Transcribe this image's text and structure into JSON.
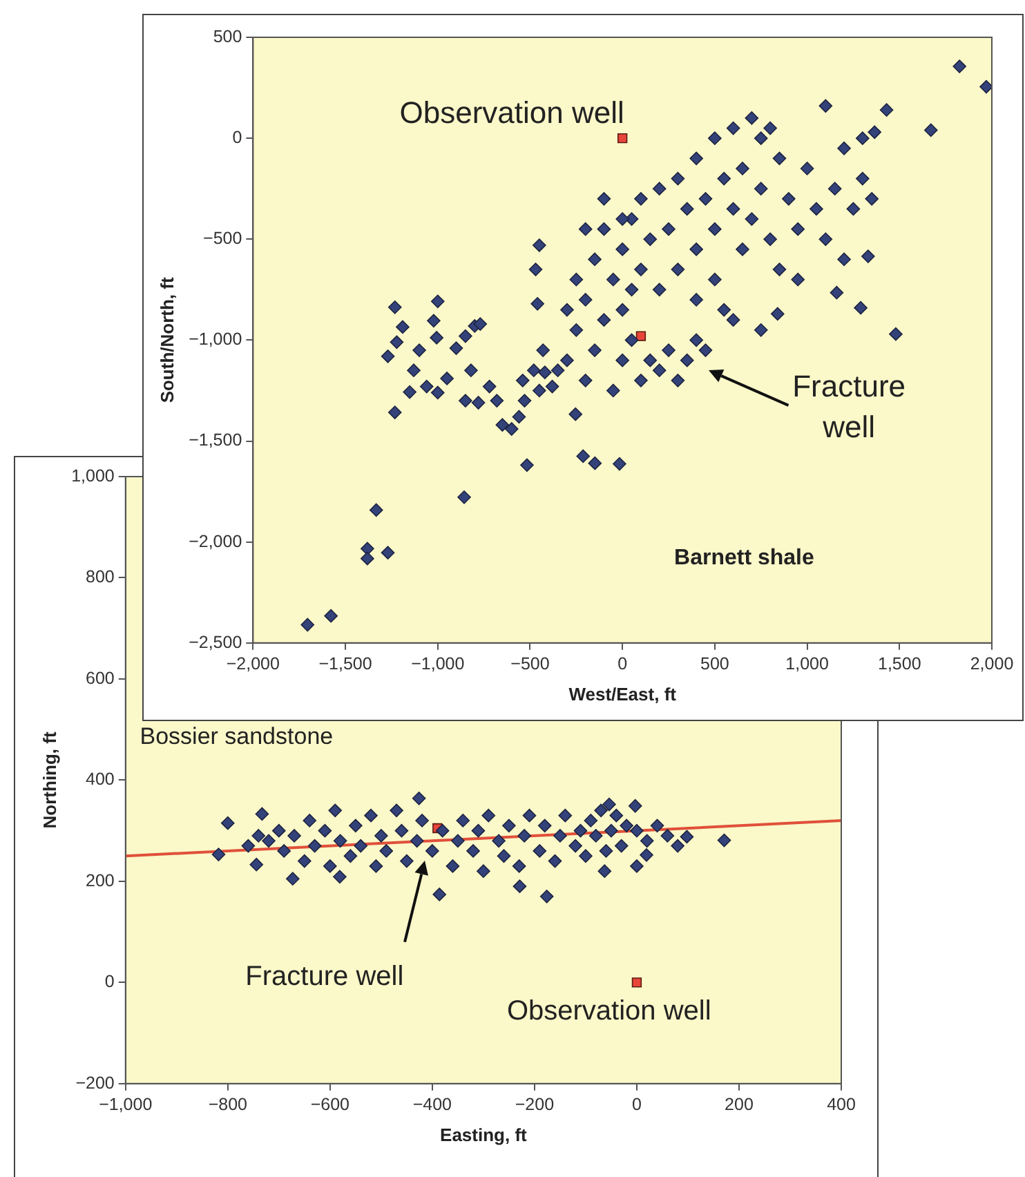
{
  "chart_data": [
    {
      "type": "scatter",
      "xlabel": "West/East, ft",
      "ylabel": "South/North, ft",
      "xlim": [
        -2000,
        2000
      ],
      "ylim": [
        -2500,
        500
      ],
      "xticks": [
        {
          "value": -2000,
          "label": "−2,000"
        },
        {
          "value": -1500,
          "label": "−1,500"
        },
        {
          "value": -1000,
          "label": "−1,000"
        },
        {
          "value": -500,
          "label": "−500"
        },
        0,
        500,
        {
          "value": 1000,
          "label": "1,000"
        },
        {
          "value": 1500,
          "label": "1,500"
        },
        {
          "value": 2000,
          "label": "2,000"
        }
      ],
      "yticks": [
        {
          "value": -2500,
          "label": "−2,500"
        },
        {
          "value": -2000,
          "label": "−2,000"
        },
        {
          "value": -1500,
          "label": "−1,500"
        },
        {
          "value": -1000,
          "label": "−1,000"
        },
        {
          "value": -500,
          "label": "−500"
        },
        0,
        500
      ],
      "grid": false,
      "legend": false,
      "series": [
        {
          "type": "scatter",
          "marker": "diamond",
          "color": "#34427a",
          "x": [
            1825,
            1970,
            1100,
            1670,
            1430,
            1365,
            1480,
            1290,
            1160,
            1330,
            840,
            750,
            -1232,
            -1190,
            -1270,
            -1232,
            -1152,
            -1222,
            -1000,
            -1022,
            -1006,
            -1100,
            -1130,
            -1060,
            -1000,
            -950,
            -900,
            -850,
            -800,
            -770,
            -820,
            -850,
            -780,
            -720,
            -680,
            -650,
            -600,
            -560,
            -540,
            -530,
            -480,
            -450,
            -430,
            -420,
            -380,
            -450,
            -470,
            -460,
            -517,
            -213,
            -149,
            -16,
            -857,
            -1333,
            -1381,
            -1381,
            -1270,
            -1705,
            -1578,
            -254,
            -300,
            -250,
            -200,
            -150,
            -100,
            -50,
            0,
            50,
            100,
            150,
            200,
            250,
            300,
            350,
            400,
            450,
            -250,
            -200,
            -150,
            -100,
            -50,
            0,
            0,
            50,
            100,
            100,
            150,
            200,
            200,
            250,
            300,
            300,
            350,
            400,
            400,
            450,
            500,
            500,
            550,
            600,
            600,
            650,
            700,
            700,
            750,
            750,
            800,
            800,
            850,
            850,
            900,
            950,
            950,
            1000,
            1050,
            1100,
            1150,
            1200,
            1200,
            1250,
            1300,
            1300,
            1350,
            -200,
            -100,
            0,
            50,
            -300,
            -350,
            500,
            600,
            650,
            400,
            550
          ],
          "values": [
            356,
            255,
            160,
            40,
            140,
            30,
            -970,
            -840,
            -765,
            -585,
            -870,
            -950,
            -837,
            -935,
            -1080,
            -1358,
            -1257,
            -1010,
            -808,
            -904,
            -988,
            -1050,
            -1150,
            -1230,
            -1260,
            -1190,
            -1040,
            -980,
            -930,
            -920,
            -1150,
            -1300,
            -1310,
            -1230,
            -1300,
            -1420,
            -1440,
            -1380,
            -1200,
            -1300,
            -1150,
            -1250,
            -1050,
            -1160,
            -1230,
            -530,
            -650,
            -820,
            -1619,
            -1575,
            -1610,
            -1613,
            -1778,
            -1842,
            -2033,
            -2082,
            -2053,
            -2410,
            -2366,
            -1367,
            -1100,
            -950,
            -1200,
            -1050,
            -900,
            -1250,
            -1100,
            -1000,
            -1200,
            -1100,
            -1150,
            -1050,
            -1200,
            -1100,
            -1000,
            -1050,
            -700,
            -800,
            -600,
            -450,
            -700,
            -550,
            -850,
            -400,
            -650,
            -300,
            -500,
            -750,
            -250,
            -450,
            -650,
            -200,
            -350,
            -550,
            -100,
            -300,
            -450,
            0,
            -200,
            -350,
            50,
            -150,
            -400,
            100,
            0,
            -250,
            -500,
            50,
            -100,
            -650,
            -300,
            -450,
            -700,
            -150,
            -350,
            -500,
            -250,
            -600,
            -50,
            -350,
            0,
            -200,
            -300,
            -450,
            -300,
            -400,
            -750,
            -850,
            -1150,
            -700,
            -900,
            -550,
            -800,
            -850
          ]
        },
        {
          "type": "scatter",
          "marker": "square",
          "color": "#e8453a",
          "x": [
            0,
            100
          ],
          "values": [
            0,
            -980
          ]
        }
      ],
      "annotations": [
        {
          "text": "Observation well",
          "x": 0,
          "y": 0
        },
        "Fracture well",
        "Barnett shale"
      ]
    },
    {
      "type": "scatter",
      "xlabel": "Easting, ft",
      "ylabel": "Northing, ft",
      "xlim": [
        -1000,
        400
      ],
      "ylim": [
        -200,
        1000
      ],
      "xticks": [
        {
          "value": -1000,
          "label": "−1,000"
        },
        {
          "value": -800,
          "label": "−800"
        },
        {
          "value": -600,
          "label": "−600"
        },
        {
          "value": -400,
          "label": "−400"
        },
        {
          "value": -200,
          "label": "−200"
        },
        0,
        200,
        400
      ],
      "yticks": [
        {
          "value": -200,
          "label": "−200"
        },
        0,
        200,
        400,
        600,
        800,
        {
          "value": 1000,
          "label": "1,000"
        }
      ],
      "grid": false,
      "legend": false,
      "series": [
        {
          "type": "line",
          "marker": "none",
          "color": "#e0503a",
          "x": [
            -1000,
            400
          ],
          "values": [
            250,
            320
          ]
        },
        {
          "type": "scatter",
          "marker": "diamond",
          "color": "#34427a",
          "x": [
            -800,
            -818,
            -733,
            -744,
            -426,
            -386,
            -229,
            -176,
            171,
            98,
            -3,
            -54,
            -63,
            19,
            0,
            -673,
            -581,
            -720,
            -700,
            -690,
            -670,
            -650,
            -640,
            -630,
            -610,
            -600,
            -590,
            -580,
            -560,
            -550,
            -540,
            -520,
            -510,
            -500,
            -490,
            -470,
            -460,
            -450,
            -430,
            -420,
            -400,
            -380,
            -360,
            -350,
            -340,
            -320,
            -310,
            -300,
            -290,
            -270,
            -260,
            -250,
            -230,
            -220,
            -210,
            -190,
            -180,
            -160,
            -150,
            -140,
            -120,
            -110,
            -100,
            -90,
            -80,
            -70,
            -60,
            -50,
            -40,
            -30,
            -20,
            0,
            20,
            40,
            60,
            80,
            -760,
            -740
          ],
          "values": [
            315,
            253,
            333,
            233,
            364,
            174,
            190,
            170,
            281,
            288,
            349,
            352,
            220,
            252,
            230,
            205,
            209,
            280,
            300,
            260,
            290,
            240,
            320,
            270,
            300,
            230,
            340,
            280,
            250,
            310,
            270,
            330,
            230,
            290,
            260,
            340,
            300,
            240,
            280,
            320,
            260,
            300,
            230,
            280,
            320,
            260,
            300,
            220,
            330,
            280,
            250,
            310,
            230,
            290,
            330,
            260,
            310,
            240,
            290,
            330,
            270,
            300,
            250,
            320,
            290,
            340,
            260,
            300,
            330,
            270,
            310,
            300,
            280,
            310,
            290,
            270,
            270,
            290
          ]
        },
        {
          "type": "scatter",
          "marker": "square",
          "color": "#e8453a",
          "x": [
            -390,
            0
          ],
          "values": [
            305,
            0
          ]
        }
      ],
      "annotations": [
        "Bossier sandstone",
        "Fracture well",
        {
          "text": "Observation well",
          "x": 0,
          "y": 0
        }
      ]
    }
  ]
}
